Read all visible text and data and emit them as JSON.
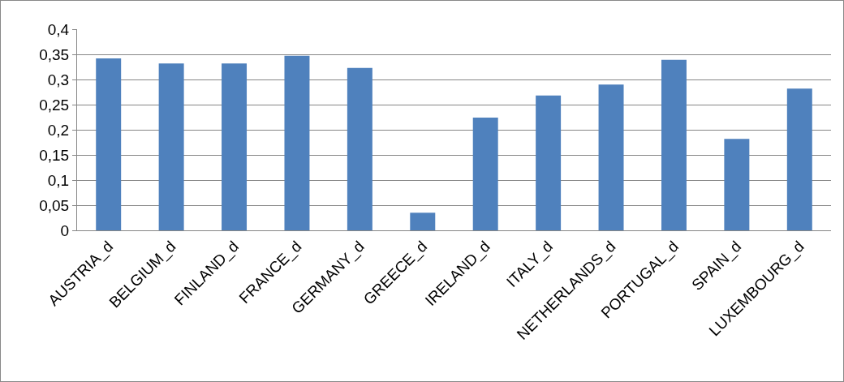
{
  "chart_data": {
    "type": "bar",
    "categories": [
      "AUSTRIA_d",
      "BELGIUM_d",
      "FINLAND_d",
      "FRANCE_d",
      "GERMANY_d",
      "GREECE_d",
      "IRELAND_d",
      "ITALY_d",
      "NETHERLANDS_d",
      "PORTUGAL_d",
      "SPAIN_d",
      "LUXEMBOURG_d"
    ],
    "values": [
      0.342,
      0.332,
      0.332,
      0.347,
      0.323,
      0.035,
      0.224,
      0.268,
      0.29,
      0.339,
      0.182,
      0.282
    ],
    "color": "#4f81bd",
    "ylim": [
      0,
      0.4
    ],
    "yticks": [
      0,
      {
        "value": 0.05,
        "label": "0,05"
      },
      {
        "value": 0.1,
        "label": "0,1"
      },
      {
        "value": 0.15,
        "label": "0,15"
      },
      {
        "value": 0.2,
        "label": "0,2"
      },
      {
        "value": 0.25,
        "label": "0,25"
      },
      {
        "value": 0.3,
        "label": "0,3"
      },
      {
        "value": 0.35,
        "label": "0,35"
      },
      {
        "value": 0.4,
        "label": "0,4"
      }
    ],
    "grid": "y"
  }
}
